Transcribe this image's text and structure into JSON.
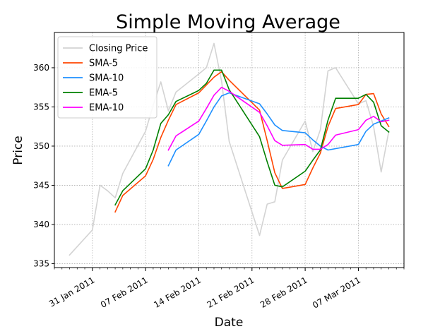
{
  "chart_data": {
    "type": "line",
    "title": "Simple Moving Average",
    "xlabel": "Date",
    "ylabel": "Price",
    "xlim": [
      "2011-01-26",
      "2011-03-13"
    ],
    "ylim": [
      334.5,
      364.5
    ],
    "y_ticks": [
      335,
      340,
      345,
      350,
      355,
      360
    ],
    "x_ticks": [
      {
        "date": "2011-01-31",
        "label": "31 Jan 2011"
      },
      {
        "date": "2011-02-07",
        "label": "07 Feb 2011"
      },
      {
        "date": "2011-02-14",
        "label": "14 Feb 2011"
      },
      {
        "date": "2011-02-21",
        "label": "21 Feb 2011"
      },
      {
        "date": "2011-02-28",
        "label": "28 Feb 2011"
      },
      {
        "date": "2011-03-07",
        "label": "07 Mar 2011"
      }
    ],
    "grid": true,
    "legend": "top-left",
    "series": [
      {
        "name": "Closing Price",
        "color": "#d3d3d3",
        "points": [
          [
            "2011-01-28",
            336.1
          ],
          [
            "2011-01-31",
            339.3
          ],
          [
            "2011-02-01",
            345.0
          ],
          [
            "2011-02-02",
            344.3
          ],
          [
            "2011-02-03",
            343.4
          ],
          [
            "2011-02-04",
            346.5
          ],
          [
            "2011-02-07",
            351.9
          ],
          [
            "2011-02-08",
            355.2
          ],
          [
            "2011-02-09",
            358.2
          ],
          [
            "2011-02-10",
            354.5
          ],
          [
            "2011-02-11",
            356.9
          ],
          [
            "2011-02-14",
            359.2
          ],
          [
            "2011-02-15",
            360.0
          ],
          [
            "2011-02-16",
            363.1
          ],
          [
            "2011-02-17",
            358.3
          ],
          [
            "2011-02-18",
            350.6
          ],
          [
            "2011-02-22",
            338.6
          ],
          [
            "2011-02-23",
            342.6
          ],
          [
            "2011-02-24",
            342.9
          ],
          [
            "2011-02-25",
            348.2
          ],
          [
            "2011-02-28",
            353.2
          ],
          [
            "2011-03-01",
            349.3
          ],
          [
            "2011-03-02",
            352.1
          ],
          [
            "2011-03-03",
            359.6
          ],
          [
            "2011-03-04",
            360.0
          ],
          [
            "2011-03-07",
            355.4
          ],
          [
            "2011-03-08",
            355.8
          ],
          [
            "2011-03-09",
            352.5
          ],
          [
            "2011-03-10",
            346.7
          ],
          [
            "2011-03-11",
            351.9
          ]
        ]
      },
      {
        "name": "SMA-5",
        "color": "#ff4500",
        "points": [
          [
            "2011-02-03",
            341.6
          ],
          [
            "2011-02-04",
            343.7
          ],
          [
            "2011-02-07",
            346.2
          ],
          [
            "2011-02-08",
            348.3
          ],
          [
            "2011-02-09",
            351.1
          ],
          [
            "2011-02-10",
            353.3
          ],
          [
            "2011-02-11",
            355.3
          ],
          [
            "2011-02-14",
            356.8
          ],
          [
            "2011-02-15",
            357.8
          ],
          [
            "2011-02-16",
            358.8
          ],
          [
            "2011-02-17",
            359.5
          ],
          [
            "2011-02-18",
            358.4
          ],
          [
            "2011-02-22",
            354.6
          ],
          [
            "2011-02-23",
            350.7
          ],
          [
            "2011-02-24",
            346.6
          ],
          [
            "2011-02-25",
            344.6
          ],
          [
            "2011-02-28",
            345.1
          ],
          [
            "2011-03-01",
            347.2
          ],
          [
            "2011-03-02",
            349.1
          ],
          [
            "2011-03-03",
            352.5
          ],
          [
            "2011-03-04",
            354.8
          ],
          [
            "2011-03-07",
            355.3
          ],
          [
            "2011-03-08",
            356.6
          ],
          [
            "2011-03-09",
            356.7
          ],
          [
            "2011-03-10",
            354.1
          ],
          [
            "2011-03-11",
            352.5
          ]
        ]
      },
      {
        "name": "SMA-10",
        "color": "#1e90ff",
        "points": [
          [
            "2011-02-10",
            347.5
          ],
          [
            "2011-02-11",
            349.5
          ],
          [
            "2011-02-14",
            351.5
          ],
          [
            "2011-02-15",
            353.2
          ],
          [
            "2011-02-16",
            355.0
          ],
          [
            "2011-02-17",
            356.4
          ],
          [
            "2011-02-18",
            356.8
          ],
          [
            "2011-02-22",
            355.4
          ],
          [
            "2011-02-23",
            354.1
          ],
          [
            "2011-02-24",
            352.7
          ],
          [
            "2011-02-25",
            352.0
          ],
          [
            "2011-02-28",
            351.7
          ],
          [
            "2011-03-01",
            350.8
          ],
          [
            "2011-03-02",
            350.0
          ],
          [
            "2011-03-03",
            349.5
          ],
          [
            "2011-03-07",
            350.2
          ],
          [
            "2011-03-08",
            351.9
          ],
          [
            "2011-03-09",
            352.8
          ],
          [
            "2011-03-10",
            353.2
          ],
          [
            "2011-03-11",
            353.6
          ]
        ]
      },
      {
        "name": "EMA-5",
        "color": "#008000",
        "points": [
          [
            "2011-02-03",
            342.5
          ],
          [
            "2011-02-04",
            344.3
          ],
          [
            "2011-02-07",
            347.1
          ],
          [
            "2011-02-08",
            349.5
          ],
          [
            "2011-02-09",
            352.9
          ],
          [
            "2011-02-10",
            354.0
          ],
          [
            "2011-02-11",
            355.7
          ],
          [
            "2011-02-14",
            357.1
          ],
          [
            "2011-02-15",
            358.0
          ],
          [
            "2011-02-16",
            359.7
          ],
          [
            "2011-02-17",
            359.7
          ],
          [
            "2011-02-18",
            357.2
          ],
          [
            "2011-02-22",
            351.2
          ],
          [
            "2011-02-23",
            348.0
          ],
          [
            "2011-02-24",
            345.0
          ],
          [
            "2011-02-25",
            344.8
          ],
          [
            "2011-02-28",
            346.8
          ],
          [
            "2011-03-01",
            348.2
          ],
          [
            "2011-03-02",
            349.5
          ],
          [
            "2011-03-03",
            353.3
          ],
          [
            "2011-03-04",
            356.1
          ],
          [
            "2011-03-07",
            356.1
          ],
          [
            "2011-03-08",
            356.6
          ],
          [
            "2011-03-09",
            355.6
          ],
          [
            "2011-03-10",
            352.6
          ],
          [
            "2011-03-11",
            351.8
          ]
        ]
      },
      {
        "name": "EMA-10",
        "color": "#ff00ff",
        "points": [
          [
            "2011-02-10",
            349.5
          ],
          [
            "2011-02-11",
            351.3
          ],
          [
            "2011-02-14",
            353.2
          ],
          [
            "2011-02-15",
            354.8
          ],
          [
            "2011-02-16",
            356.5
          ],
          [
            "2011-02-17",
            357.5
          ],
          [
            "2011-02-18",
            357.0
          ],
          [
            "2011-02-22",
            354.3
          ],
          [
            "2011-02-23",
            352.6
          ],
          [
            "2011-02-24",
            350.7
          ],
          [
            "2011-02-25",
            350.1
          ],
          [
            "2011-02-28",
            350.2
          ],
          [
            "2011-03-01",
            349.6
          ],
          [
            "2011-03-02",
            349.6
          ],
          [
            "2011-03-03",
            350.2
          ],
          [
            "2011-03-04",
            351.4
          ],
          [
            "2011-03-07",
            352.1
          ],
          [
            "2011-03-08",
            353.3
          ],
          [
            "2011-03-09",
            353.8
          ],
          [
            "2011-03-10",
            353.1
          ],
          [
            "2011-03-11",
            353.3
          ]
        ]
      }
    ]
  }
}
